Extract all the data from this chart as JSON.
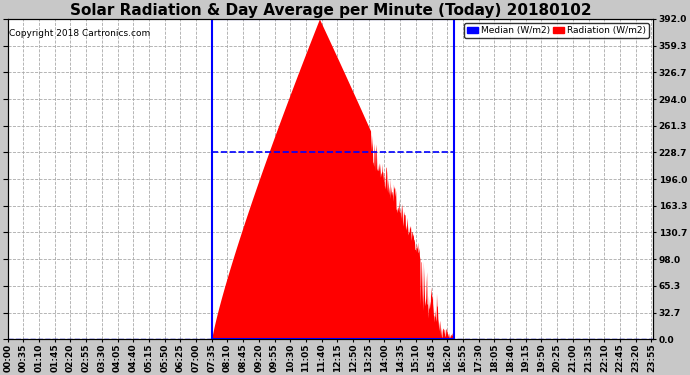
{
  "title": "Solar Radiation & Day Average per Minute (Today) 20180102",
  "copyright": "Copyright 2018 Cartronics.com",
  "yticks": [
    0.0,
    32.7,
    65.3,
    98.0,
    130.7,
    163.3,
    196.0,
    228.7,
    261.3,
    294.0,
    326.7,
    359.3,
    392.0
  ],
  "ymax": 392.0,
  "ymin": 0.0,
  "plot_bg_color": "#ffffff",
  "fig_bg_color": "#c8c8c8",
  "grid_color": "#aaaaaa",
  "radiation_color": "#ff0000",
  "median_color": "#0000ff",
  "box_color": "#0000ff",
  "title_fontsize": 11,
  "tick_fontsize": 6.5,
  "copyright_fontsize": 6.5,
  "sunrise_minute": 455,
  "sunset_minute": 995,
  "total_minutes": 1440,
  "peak_radiation": 392.0,
  "peak_minute": 695,
  "median_value": 228.7
}
